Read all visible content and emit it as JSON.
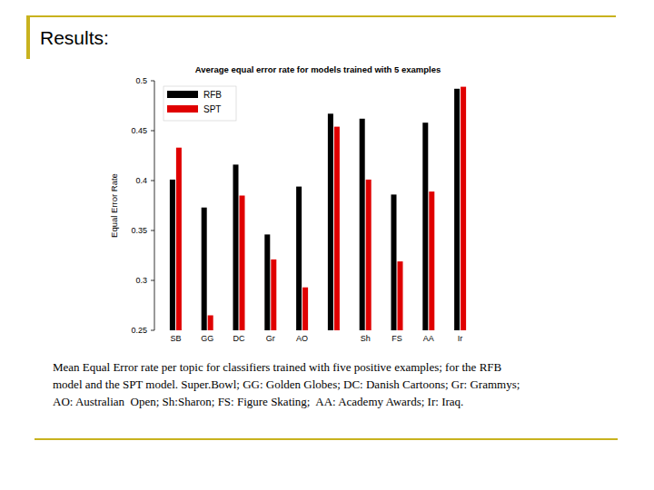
{
  "slide_title": "Results:",
  "caption": [
    "Mean Equal Error rate per topic for classifiers trained with five positive examples; for the RFB",
    "model and the SPT model. Super.Bowl; GG: Golden Globes; DC: Danish Cartoons; Gr: Grammys;",
    "AO: Australian  Open; Sh:Sharon; FS: Figure Skating;  AA: Academy Awards; Ir: Iraq."
  ],
  "chart_data": {
    "type": "bar",
    "title": "Average equal error rate for models trained with 5 examples",
    "y_label": "Equal Error Rate",
    "categories": [
      "SB",
      "GG",
      "DC",
      "Gr",
      "AO",
      null,
      "Sh",
      "FS",
      "AA",
      "Ir"
    ],
    "series": [
      {
        "name": "RFB",
        "color": "#000000",
        "values": [
          0.401,
          0.373,
          0.416,
          0.346,
          0.394,
          0.467,
          0.462,
          0.386,
          0.458,
          0.492
        ]
      },
      {
        "name": "SPT",
        "color": "#e00000",
        "values": [
          0.433,
          0.265,
          0.385,
          0.321,
          0.293,
          0.454,
          0.401,
          0.319,
          0.389,
          0.494
        ]
      }
    ],
    "ylim": [
      0.25,
      0.5
    ],
    "yticks": [
      0.25,
      0.3,
      0.35,
      0.4,
      0.45,
      0.5
    ],
    "legend": "top-left",
    "grid": false
  }
}
